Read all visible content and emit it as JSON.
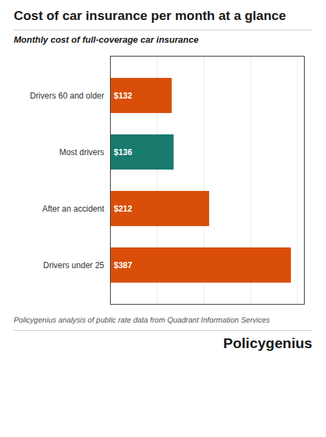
{
  "chart_data": {
    "type": "bar",
    "orientation": "horizontal",
    "title": "Cost of car insurance per month at a glance",
    "subtitle": "Monthly cost of full-coverage car insurance",
    "categories": [
      "Drivers under 25",
      "After an accident",
      "Most drivers",
      "Drivers 60 and older"
    ],
    "values": [
      387,
      212,
      136,
      132
    ],
    "value_labels": [
      "$387",
      "$212",
      "$136",
      "$132"
    ],
    "data_labels": true,
    "colors": [
      "#D94F0A",
      "#D94F0A",
      "#1A7A6E",
      "#D94F0A"
    ],
    "xlim": [
      0,
      415
    ],
    "xticks": [
      100,
      200,
      300,
      400
    ],
    "grid": true,
    "tick_labels": "y",
    "annotations": [
      "Policygenius analysis of public rate data from Quadrant Information Services",
      "Policygenius"
    ]
  }
}
